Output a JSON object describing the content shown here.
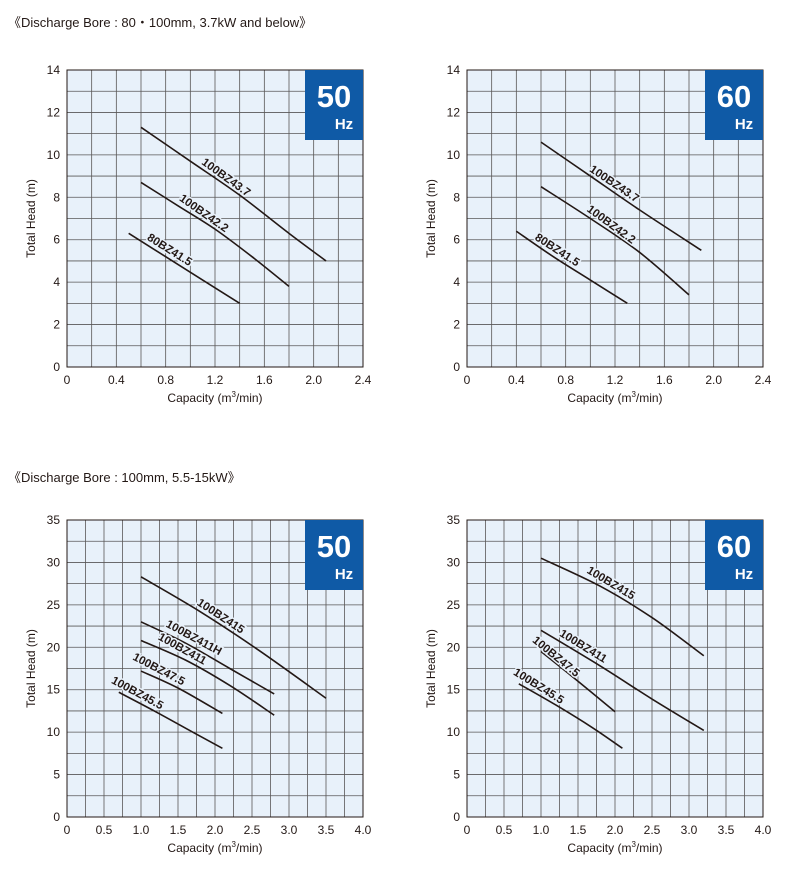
{
  "sections": [
    {
      "title": "《Discharge Bore : 80・100mm, 3.7kW and below》"
    },
    {
      "title": "《Discharge Bore : 100mm, 5.5-15kW》"
    }
  ],
  "chart_data": [
    {
      "type": "line",
      "badge": {
        "value": "50",
        "unit": "Hz"
      },
      "xlabel": "Capacity (m³/min)",
      "xlabel_main": "Capacity (m",
      "xlabel_sup": "3",
      "xlabel_end": "/min)",
      "ylabel": "Total Head (m)",
      "xlim": [
        0,
        2.4
      ],
      "ylim": [
        0,
        14
      ],
      "xticks": [
        0,
        0.4,
        0.8,
        1.2,
        1.6,
        2.0,
        2.4
      ],
      "xtick_labels": [
        "0",
        "0.4",
        "0.8",
        "1.2",
        "1.6",
        "2.0",
        "2.4"
      ],
      "yticks": [
        0,
        2,
        4,
        6,
        8,
        10,
        12,
        14
      ],
      "ytick_labels": [
        "0",
        "2",
        "4",
        "6",
        "8",
        "10",
        "12",
        "14"
      ],
      "x_minor": 0.2,
      "y_minor": 1,
      "grid": true,
      "series": [
        {
          "name": "100BZ43.7",
          "x": [
            0.6,
            1.0,
            1.4,
            1.8,
            2.1
          ],
          "y": [
            11.3,
            9.7,
            8.1,
            6.3,
            5.0
          ]
        },
        {
          "name": "100BZ42.2",
          "x": [
            0.6,
            0.9,
            1.2,
            1.5,
            1.8
          ],
          "y": [
            8.7,
            7.6,
            6.5,
            5.2,
            3.8
          ]
        },
        {
          "name": "80BZ41.5",
          "x": [
            0.5,
            0.8,
            1.1,
            1.4
          ],
          "y": [
            6.3,
            5.2,
            4.1,
            3.0
          ]
        }
      ]
    },
    {
      "type": "line",
      "badge": {
        "value": "60",
        "unit": "Hz"
      },
      "xlabel": "Capacity (m³/min)",
      "xlabel_main": "Capacity (m",
      "xlabel_sup": "3",
      "xlabel_end": "/min)",
      "ylabel": "Total Head (m)",
      "xlim": [
        0,
        2.4
      ],
      "ylim": [
        0,
        14
      ],
      "xticks": [
        0,
        0.4,
        0.8,
        1.2,
        1.6,
        2.0,
        2.4
      ],
      "xtick_labels": [
        "0",
        "0.4",
        "0.8",
        "1.2",
        "1.6",
        "2.0",
        "2.4"
      ],
      "yticks": [
        0,
        2,
        4,
        6,
        8,
        10,
        12,
        14
      ],
      "ytick_labels": [
        "0",
        "2",
        "4",
        "6",
        "8",
        "10",
        "12",
        "14"
      ],
      "x_minor": 0.2,
      "y_minor": 1,
      "grid": true,
      "series": [
        {
          "name": "100BZ43.7",
          "x": [
            0.6,
            1.0,
            1.4,
            1.9
          ],
          "y": [
            10.6,
            9.0,
            7.4,
            5.5
          ]
        },
        {
          "name": "100BZ42.2",
          "x": [
            0.6,
            1.0,
            1.4,
            1.8
          ],
          "y": [
            8.5,
            7.0,
            5.4,
            3.4
          ]
        },
        {
          "name": "80BZ41.5",
          "x": [
            0.4,
            0.7,
            1.0,
            1.3
          ],
          "y": [
            6.4,
            5.2,
            4.1,
            3.0
          ]
        }
      ]
    },
    {
      "type": "line",
      "badge": {
        "value": "50",
        "unit": "Hz"
      },
      "xlabel": "Capacity (m³/min)",
      "xlabel_main": "Capacity (m",
      "xlabel_sup": "3",
      "xlabel_end": "/min)",
      "ylabel": "Total Head (m)",
      "xlim": [
        0,
        4.0
      ],
      "ylim": [
        0,
        35
      ],
      "xticks": [
        0,
        0.5,
        1.0,
        1.5,
        2.0,
        2.5,
        3.0,
        3.5,
        4.0
      ],
      "xtick_labels": [
        "0",
        "0.5",
        "1.0",
        "1.5",
        "2.0",
        "2.5",
        "3.0",
        "3.5",
        "4.0"
      ],
      "yticks": [
        0,
        5,
        10,
        15,
        20,
        25,
        30,
        35
      ],
      "ytick_labels": [
        "0",
        "5",
        "10",
        "15",
        "20",
        "25",
        "30",
        "35"
      ],
      "x_minor": 0.25,
      "y_minor": 2.5,
      "grid": true,
      "series": [
        {
          "name": "100BZ415",
          "x": [
            1.0,
            1.8,
            2.6,
            3.5
          ],
          "y": [
            28.3,
            24.2,
            19.6,
            14.0
          ]
        },
        {
          "name": "100BZ411H",
          "x": [
            1.0,
            1.6,
            2.2,
            2.8
          ],
          "y": [
            23.0,
            20.5,
            17.5,
            14.5
          ]
        },
        {
          "name": "100BZ411",
          "x": [
            1.0,
            1.6,
            2.2,
            2.8
          ],
          "y": [
            20.8,
            18.5,
            15.5,
            12.0
          ]
        },
        {
          "name": "100BZ47.5",
          "x": [
            1.0,
            1.5,
            2.1
          ],
          "y": [
            17.2,
            15.2,
            12.2
          ]
        },
        {
          "name": "100BZ45.5",
          "x": [
            0.7,
            1.2,
            1.7,
            2.1
          ],
          "y": [
            14.7,
            12.4,
            10.0,
            8.1
          ]
        }
      ]
    },
    {
      "type": "line",
      "badge": {
        "value": "60",
        "unit": "Hz"
      },
      "xlabel": "Capacity (m³/min)",
      "xlabel_main": "Capacity (m",
      "xlabel_sup": "3",
      "xlabel_end": "/min)",
      "ylabel": "Total Head (m)",
      "xlim": [
        0,
        4.0
      ],
      "ylim": [
        0,
        35
      ],
      "xticks": [
        0,
        0.5,
        1.0,
        1.5,
        2.0,
        2.5,
        3.0,
        3.5,
        4.0
      ],
      "xtick_labels": [
        "0",
        "0.5",
        "1.0",
        "1.5",
        "2.0",
        "2.5",
        "3.0",
        "3.5",
        "4.0"
      ],
      "yticks": [
        0,
        5,
        10,
        15,
        20,
        25,
        30,
        35
      ],
      "ytick_labels": [
        "0",
        "5",
        "10",
        "15",
        "20",
        "25",
        "30",
        "35"
      ],
      "x_minor": 0.25,
      "y_minor": 2.5,
      "grid": true,
      "series": [
        {
          "name": "100BZ415",
          "x": [
            1.0,
            1.8,
            2.5,
            3.2
          ],
          "y": [
            30.5,
            27.2,
            23.5,
            19.0
          ]
        },
        {
          "name": "100BZ411",
          "x": [
            1.0,
            1.8,
            2.5,
            3.2
          ],
          "y": [
            22.0,
            17.8,
            13.9,
            10.2
          ]
        },
        {
          "name": "100BZ47.5",
          "x": [
            1.0,
            1.5,
            2.0
          ],
          "y": [
            19.5,
            16.0,
            12.4
          ]
        },
        {
          "name": "100BZ45.5",
          "x": [
            0.7,
            1.2,
            1.7,
            2.1
          ],
          "y": [
            15.7,
            13.2,
            10.5,
            8.1
          ]
        }
      ]
    }
  ]
}
